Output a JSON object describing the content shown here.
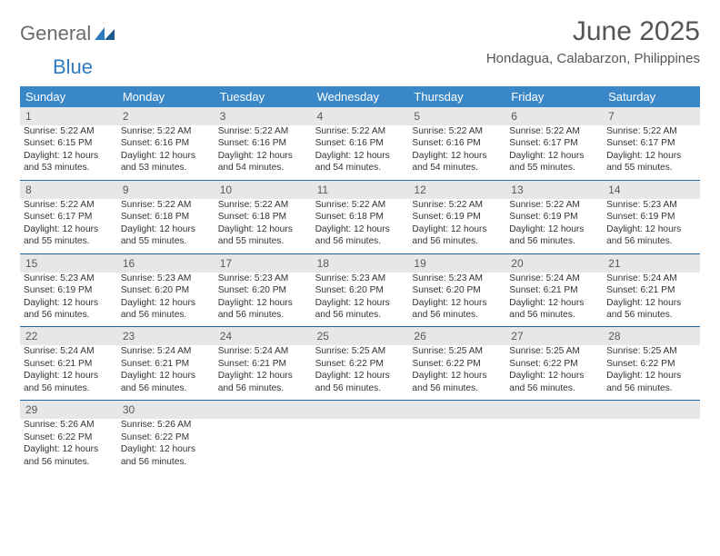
{
  "logo": {
    "general": "General",
    "blue": "Blue"
  },
  "title": {
    "month": "June 2025",
    "location": "Hondagua, Calabarzon, Philippines"
  },
  "colors": {
    "header_bg": "#3a87c8",
    "header_text": "#ffffff",
    "daynum_bg": "#e7e7e7",
    "daynum_text": "#5a5a5a",
    "border": "#23669e",
    "body_text": "#333333",
    "logo_general": "#6b6b6b",
    "logo_blue": "#2f7bbf"
  },
  "day_headers": [
    "Sunday",
    "Monday",
    "Tuesday",
    "Wednesday",
    "Thursday",
    "Friday",
    "Saturday"
  ],
  "weeks": [
    {
      "nums": [
        "1",
        "2",
        "3",
        "4",
        "5",
        "6",
        "7"
      ],
      "cells": [
        {
          "sunrise": "Sunrise: 5:22 AM",
          "sunset": "Sunset: 6:15 PM",
          "day1": "Daylight: 12 hours",
          "day2": "and 53 minutes."
        },
        {
          "sunrise": "Sunrise: 5:22 AM",
          "sunset": "Sunset: 6:16 PM",
          "day1": "Daylight: 12 hours",
          "day2": "and 53 minutes."
        },
        {
          "sunrise": "Sunrise: 5:22 AM",
          "sunset": "Sunset: 6:16 PM",
          "day1": "Daylight: 12 hours",
          "day2": "and 54 minutes."
        },
        {
          "sunrise": "Sunrise: 5:22 AM",
          "sunset": "Sunset: 6:16 PM",
          "day1": "Daylight: 12 hours",
          "day2": "and 54 minutes."
        },
        {
          "sunrise": "Sunrise: 5:22 AM",
          "sunset": "Sunset: 6:16 PM",
          "day1": "Daylight: 12 hours",
          "day2": "and 54 minutes."
        },
        {
          "sunrise": "Sunrise: 5:22 AM",
          "sunset": "Sunset: 6:17 PM",
          "day1": "Daylight: 12 hours",
          "day2": "and 55 minutes."
        },
        {
          "sunrise": "Sunrise: 5:22 AM",
          "sunset": "Sunset: 6:17 PM",
          "day1": "Daylight: 12 hours",
          "day2": "and 55 minutes."
        }
      ]
    },
    {
      "nums": [
        "8",
        "9",
        "10",
        "11",
        "12",
        "13",
        "14"
      ],
      "cells": [
        {
          "sunrise": "Sunrise: 5:22 AM",
          "sunset": "Sunset: 6:17 PM",
          "day1": "Daylight: 12 hours",
          "day2": "and 55 minutes."
        },
        {
          "sunrise": "Sunrise: 5:22 AM",
          "sunset": "Sunset: 6:18 PM",
          "day1": "Daylight: 12 hours",
          "day2": "and 55 minutes."
        },
        {
          "sunrise": "Sunrise: 5:22 AM",
          "sunset": "Sunset: 6:18 PM",
          "day1": "Daylight: 12 hours",
          "day2": "and 55 minutes."
        },
        {
          "sunrise": "Sunrise: 5:22 AM",
          "sunset": "Sunset: 6:18 PM",
          "day1": "Daylight: 12 hours",
          "day2": "and 56 minutes."
        },
        {
          "sunrise": "Sunrise: 5:22 AM",
          "sunset": "Sunset: 6:19 PM",
          "day1": "Daylight: 12 hours",
          "day2": "and 56 minutes."
        },
        {
          "sunrise": "Sunrise: 5:22 AM",
          "sunset": "Sunset: 6:19 PM",
          "day1": "Daylight: 12 hours",
          "day2": "and 56 minutes."
        },
        {
          "sunrise": "Sunrise: 5:23 AM",
          "sunset": "Sunset: 6:19 PM",
          "day1": "Daylight: 12 hours",
          "day2": "and 56 minutes."
        }
      ]
    },
    {
      "nums": [
        "15",
        "16",
        "17",
        "18",
        "19",
        "20",
        "21"
      ],
      "cells": [
        {
          "sunrise": "Sunrise: 5:23 AM",
          "sunset": "Sunset: 6:19 PM",
          "day1": "Daylight: 12 hours",
          "day2": "and 56 minutes."
        },
        {
          "sunrise": "Sunrise: 5:23 AM",
          "sunset": "Sunset: 6:20 PM",
          "day1": "Daylight: 12 hours",
          "day2": "and 56 minutes."
        },
        {
          "sunrise": "Sunrise: 5:23 AM",
          "sunset": "Sunset: 6:20 PM",
          "day1": "Daylight: 12 hours",
          "day2": "and 56 minutes."
        },
        {
          "sunrise": "Sunrise: 5:23 AM",
          "sunset": "Sunset: 6:20 PM",
          "day1": "Daylight: 12 hours",
          "day2": "and 56 minutes."
        },
        {
          "sunrise": "Sunrise: 5:23 AM",
          "sunset": "Sunset: 6:20 PM",
          "day1": "Daylight: 12 hours",
          "day2": "and 56 minutes."
        },
        {
          "sunrise": "Sunrise: 5:24 AM",
          "sunset": "Sunset: 6:21 PM",
          "day1": "Daylight: 12 hours",
          "day2": "and 56 minutes."
        },
        {
          "sunrise": "Sunrise: 5:24 AM",
          "sunset": "Sunset: 6:21 PM",
          "day1": "Daylight: 12 hours",
          "day2": "and 56 minutes."
        }
      ]
    },
    {
      "nums": [
        "22",
        "23",
        "24",
        "25",
        "26",
        "27",
        "28"
      ],
      "cells": [
        {
          "sunrise": "Sunrise: 5:24 AM",
          "sunset": "Sunset: 6:21 PM",
          "day1": "Daylight: 12 hours",
          "day2": "and 56 minutes."
        },
        {
          "sunrise": "Sunrise: 5:24 AM",
          "sunset": "Sunset: 6:21 PM",
          "day1": "Daylight: 12 hours",
          "day2": "and 56 minutes."
        },
        {
          "sunrise": "Sunrise: 5:24 AM",
          "sunset": "Sunset: 6:21 PM",
          "day1": "Daylight: 12 hours",
          "day2": "and 56 minutes."
        },
        {
          "sunrise": "Sunrise: 5:25 AM",
          "sunset": "Sunset: 6:22 PM",
          "day1": "Daylight: 12 hours",
          "day2": "and 56 minutes."
        },
        {
          "sunrise": "Sunrise: 5:25 AM",
          "sunset": "Sunset: 6:22 PM",
          "day1": "Daylight: 12 hours",
          "day2": "and 56 minutes."
        },
        {
          "sunrise": "Sunrise: 5:25 AM",
          "sunset": "Sunset: 6:22 PM",
          "day1": "Daylight: 12 hours",
          "day2": "and 56 minutes."
        },
        {
          "sunrise": "Sunrise: 5:25 AM",
          "sunset": "Sunset: 6:22 PM",
          "day1": "Daylight: 12 hours",
          "day2": "and 56 minutes."
        }
      ]
    },
    {
      "nums": [
        "29",
        "30",
        "",
        "",
        "",
        "",
        ""
      ],
      "cells": [
        {
          "sunrise": "Sunrise: 5:26 AM",
          "sunset": "Sunset: 6:22 PM",
          "day1": "Daylight: 12 hours",
          "day2": "and 56 minutes."
        },
        {
          "sunrise": "Sunrise: 5:26 AM",
          "sunset": "Sunset: 6:22 PM",
          "day1": "Daylight: 12 hours",
          "day2": "and 56 minutes."
        },
        null,
        null,
        null,
        null,
        null
      ]
    }
  ]
}
